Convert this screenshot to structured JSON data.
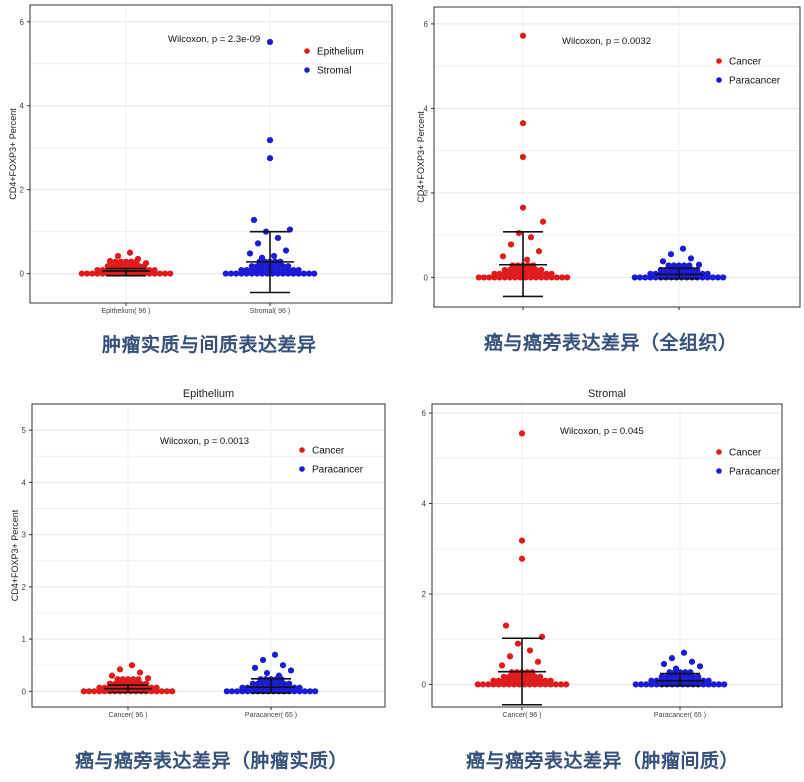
{
  "colors": {
    "cancer": "#e01b1b",
    "paracancer": "#1b1bd6",
    "caption": "#35507a",
    "grid": "#e6e6e6",
    "axis": "#333333"
  },
  "captions": [
    "肿瘤实质与间质表达差异",
    "癌与癌旁表达差异（全组织）",
    "癌与癌旁表达差异（肿瘤实质）",
    "癌与癌旁表达差异（肿瘤间质）"
  ],
  "chart_data": [
    {
      "type": "scatter",
      "title": "",
      "xlabel": "",
      "ylabel": "CD4+FOXP3+ Percent",
      "annotation": "Wilcoxon, p = 2.3e-09",
      "ylim": [
        -0.7,
        6.4
      ],
      "yticks": [
        "0",
        "2",
        "4",
        "6"
      ],
      "categories": [
        "Epithelium( 96 )",
        "Stromal( 96 )"
      ],
      "legend": [
        "Epithelium",
        "Stromal"
      ],
      "legend_position": "top-right",
      "series": [
        {
          "name": "Epithelium",
          "color": "cancer",
          "mean": 0.06,
          "sd_low": -0.05,
          "sd_high": 0.12,
          "outliers": [
            0.5,
            0.42,
            0.35,
            0.3,
            0.25,
            0.2
          ]
        },
        {
          "name": "Stromal",
          "color": "paracancer",
          "mean": 0.28,
          "sd_low": -0.45,
          "sd_high": 1.0,
          "outliers": [
            5.52,
            3.18,
            2.75,
            1.28,
            1.05,
            1.0,
            0.85,
            0.72,
            0.55,
            0.48,
            0.42,
            0.38
          ]
        }
      ]
    },
    {
      "type": "scatter",
      "title": "",
      "xlabel": "",
      "ylabel": "CD4+FOXP3+ Percent",
      "annotation": "Wilcoxon, p = 0.0032",
      "ylim": [
        -0.7,
        6.4
      ],
      "yticks": [
        "0",
        "2",
        "4",
        "6"
      ],
      "categories": [
        "",
        ""
      ],
      "legend": [
        "Cancer",
        "Paracancer"
      ],
      "legend_position": "top-right",
      "series": [
        {
          "name": "Cancer",
          "color": "cancer",
          "mean": 0.3,
          "sd_low": -0.45,
          "sd_high": 1.08,
          "outliers": [
            5.72,
            3.65,
            2.85,
            1.65,
            1.32,
            1.05,
            0.95,
            0.78,
            0.62,
            0.5,
            0.42
          ]
        },
        {
          "name": "Paracancer",
          "color": "paracancer",
          "mean": 0.07,
          "sd_low": -0.03,
          "sd_high": 0.22,
          "outliers": [
            0.68,
            0.55,
            0.45,
            0.38,
            0.3
          ]
        }
      ]
    },
    {
      "type": "scatter",
      "title": "Epithelium",
      "xlabel": "",
      "ylabel": "CD4+FOXP3+ Percent",
      "annotation": "Wilcoxon, p = 0.0013",
      "ylim": [
        -0.3,
        5.5
      ],
      "yticks": [
        "0",
        "1",
        "2",
        "3",
        "4",
        "5"
      ],
      "categories": [
        "Cancer( 96 )",
        "Paracancer( 65 )"
      ],
      "legend": [
        "Cancer",
        "Paracancer"
      ],
      "legend_position": "top-right",
      "series": [
        {
          "name": "Cancer",
          "color": "cancer",
          "mean": 0.05,
          "sd_low": -0.02,
          "sd_high": 0.12,
          "outliers": [
            0.5,
            0.42,
            0.36,
            0.3,
            0.25,
            0.2
          ]
        },
        {
          "name": "Paracancer",
          "color": "paracancer",
          "mean": 0.08,
          "sd_low": -0.03,
          "sd_high": 0.24,
          "outliers": [
            0.7,
            0.6,
            0.5,
            0.45,
            0.4,
            0.35,
            0.3
          ]
        }
      ]
    },
    {
      "type": "scatter",
      "title": "Stromal",
      "xlabel": "",
      "ylabel": "",
      "annotation": "Wilcoxon, p = 0.045",
      "ylim": [
        -0.5,
        6.2
      ],
      "yticks": [
        "0",
        "2",
        "4",
        "6"
      ],
      "categories": [
        "Cancer( 96 )",
        "Paracancer( 65 )"
      ],
      "legend": [
        "Cancer",
        "Paracancer"
      ],
      "legend_position": "top-right",
      "series": [
        {
          "name": "Cancer",
          "color": "cancer",
          "mean": 0.28,
          "sd_low": -0.45,
          "sd_high": 1.02,
          "outliers": [
            5.55,
            3.18,
            2.78,
            1.3,
            1.05,
            0.9,
            0.75,
            0.62,
            0.5,
            0.42
          ]
        },
        {
          "name": "Paracancer",
          "color": "paracancer",
          "mean": 0.08,
          "sd_low": -0.03,
          "sd_high": 0.24,
          "outliers": [
            0.7,
            0.58,
            0.5,
            0.45,
            0.4,
            0.35
          ]
        }
      ]
    }
  ]
}
